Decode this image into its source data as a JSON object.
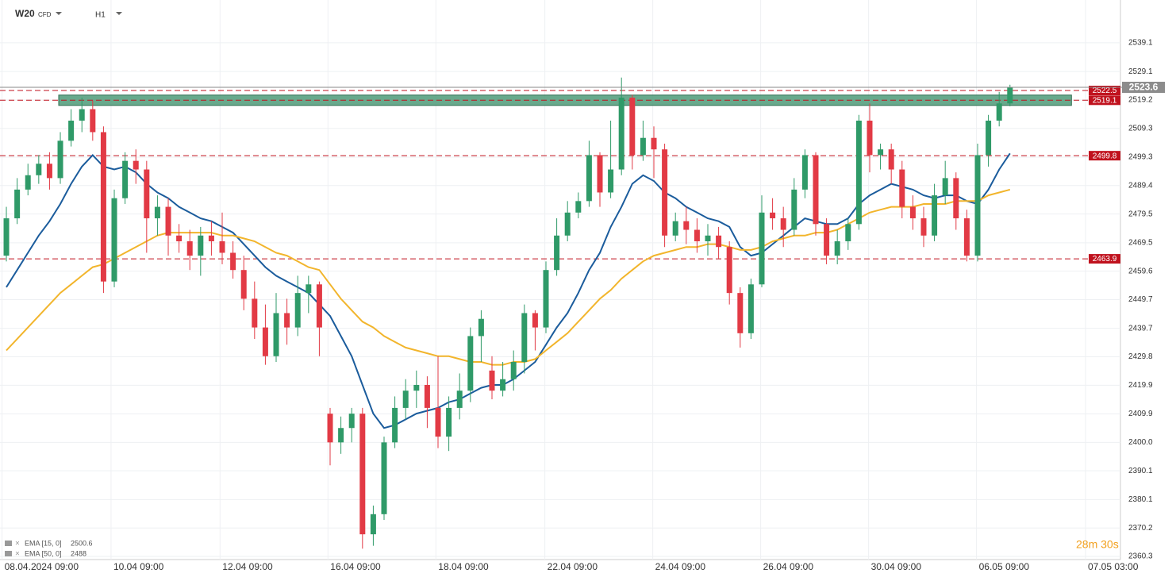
{
  "header": {
    "symbol": "W20",
    "instrument": "CFD",
    "interval": "H1"
  },
  "chart_data": {
    "type": "candlestick",
    "xlim": [
      -0.59,
      103.09
    ],
    "ylim": [
      2359.2,
      2554.0
    ],
    "xticks": [
      {
        "value": -0.4,
        "label": "08.04.2024 09:00"
      },
      {
        "value": 9.7,
        "label": "10.04 09:00"
      },
      {
        "value": 19.8,
        "label": "12.04 09:00"
      },
      {
        "value": 29.8,
        "label": "16.04 09:00"
      },
      {
        "value": 39.8,
        "label": "18.04 09:00"
      },
      {
        "value": 49.9,
        "label": "22.04 09:00"
      },
      {
        "value": 59.9,
        "label": "24.04 09:00"
      },
      {
        "value": 69.9,
        "label": "26.04 09:00"
      },
      {
        "value": 79.9,
        "label": "30.04 09:00"
      },
      {
        "value": 89.9,
        "label": "06.05 09:00"
      },
      {
        "value": 100.0,
        "label": "07.05 03:00"
      }
    ],
    "yticks": [
      2539.1,
      2529.1,
      2519.2,
      2509.3,
      2499.3,
      2489.4,
      2479.5,
      2469.5,
      2459.6,
      2449.7,
      2439.7,
      2429.8,
      2419.9,
      2409.9,
      {
        "value": 2400,
        "label": "2400.0"
      },
      2390.1,
      2380.1,
      2370.2,
      2360.3
    ],
    "grid": true,
    "up_color": "#2f9a68",
    "down_color": "#e23a45",
    "ohlc": [
      [
        2465,
        2482,
        2463,
        2478
      ],
      [
        2478,
        2492,
        2476,
        2488
      ],
      [
        2488,
        2497,
        2486,
        2493
      ],
      [
        2493,
        2500,
        2490,
        2497
      ],
      [
        2497,
        2501,
        2488,
        2492
      ],
      [
        2492,
        2508,
        2490,
        2505
      ],
      [
        2505,
        2516,
        2503,
        2512
      ],
      [
        2512,
        2520,
        2508,
        2516
      ],
      [
        2516,
        2519,
        2505,
        2508
      ],
      [
        2508,
        2510,
        2452,
        2456
      ],
      [
        2456,
        2488,
        2454,
        2485
      ],
      [
        2485,
        2501,
        2483,
        2498
      ],
      [
        2498,
        2502,
        2490,
        2495
      ],
      [
        2495,
        2498,
        2466,
        2478
      ],
      [
        2478,
        2486,
        2472,
        2482
      ],
      [
        2482,
        2485,
        2465,
        2472
      ],
      [
        2472,
        2476,
        2466,
        2470
      ],
      [
        2470,
        2474,
        2460,
        2465
      ],
      [
        2465,
        2475,
        2458,
        2472
      ],
      [
        2472,
        2477,
        2465,
        2470
      ],
      [
        2470,
        2480,
        2462,
        2466
      ],
      [
        2466,
        2470,
        2457,
        2460
      ],
      [
        2460,
        2465,
        2446,
        2450
      ],
      [
        2450,
        2456,
        2436,
        2440
      ],
      [
        2440,
        2448,
        2427,
        2430
      ],
      [
        2430,
        2452,
        2428,
        2445
      ],
      [
        2445,
        2450,
        2434,
        2440
      ],
      [
        2440,
        2458,
        2437,
        2452
      ],
      [
        2452,
        2458,
        2445,
        2455
      ],
      [
        2455,
        2456,
        2430,
        2440
      ],
      [
        2410,
        2412,
        2392,
        2400
      ],
      [
        2400,
        2409,
        2396,
        2405
      ],
      [
        2405,
        2412,
        2400,
        2410
      ],
      [
        2410,
        2412,
        2363,
        2368
      ],
      [
        2368,
        2378,
        2364,
        2375
      ],
      [
        2375,
        2402,
        2373,
        2400
      ],
      [
        2400,
        2416,
        2398,
        2412
      ],
      [
        2412,
        2422,
        2408,
        2418
      ],
      [
        2418,
        2425,
        2412,
        2420
      ],
      [
        2420,
        2423,
        2405,
        2412
      ],
      [
        2412,
        2430,
        2398,
        2402
      ],
      [
        2402,
        2416,
        2397,
        2412
      ],
      [
        2412,
        2424,
        2408,
        2418
      ],
      [
        2418,
        2440,
        2414,
        2437
      ],
      [
        2437,
        2446,
        2428,
        2443
      ],
      [
        2425,
        2430,
        2415,
        2418
      ],
      [
        2418,
        2428,
        2416,
        2422
      ],
      [
        2422,
        2432,
        2418,
        2428
      ],
      [
        2428,
        2448,
        2424,
        2445
      ],
      [
        2445,
        2446,
        2432,
        2440
      ],
      [
        2440,
        2463,
        2438,
        2460
      ],
      [
        2460,
        2478,
        2458,
        2472
      ],
      [
        2472,
        2484,
        2470,
        2480
      ],
      [
        2480,
        2487,
        2478,
        2484
      ],
      [
        2484,
        2505,
        2482,
        2500
      ],
      [
        2500,
        2501,
        2482,
        2487
      ],
      [
        2487,
        2512,
        2485,
        2495
      ],
      [
        2495,
        2527,
        2493,
        2520
      ],
      [
        2520,
        2521,
        2495,
        2500
      ],
      [
        2500,
        2512,
        2498,
        2506
      ],
      [
        2506,
        2510,
        2492,
        2502
      ],
      [
        2502,
        2504,
        2468,
        2472
      ],
      [
        2472,
        2480,
        2470,
        2477
      ],
      [
        2477,
        2482,
        2469,
        2474
      ],
      [
        2474,
        2478,
        2466,
        2470
      ],
      [
        2470,
        2476,
        2465,
        2472
      ],
      [
        2472,
        2475,
        2464,
        2468
      ],
      [
        2468,
        2470,
        2448,
        2452
      ],
      [
        2452,
        2454,
        2433,
        2438
      ],
      [
        2438,
        2457,
        2436,
        2455
      ],
      [
        2455,
        2486,
        2454,
        2480
      ],
      [
        2480,
        2485,
        2474,
        2478
      ],
      [
        2478,
        2482,
        2468,
        2474
      ],
      [
        2474,
        2492,
        2472,
        2488
      ],
      [
        2488,
        2502,
        2485,
        2500
      ],
      [
        2500,
        2501,
        2472,
        2476
      ],
      [
        2476,
        2478,
        2462,
        2465
      ],
      [
        2465,
        2474,
        2462,
        2470
      ],
      [
        2470,
        2478,
        2467,
        2476
      ],
      [
        2476,
        2514,
        2474,
        2512
      ],
      [
        2512,
        2518,
        2494,
        2500
      ],
      [
        2500,
        2504,
        2495,
        2502
      ],
      [
        2502,
        2504,
        2490,
        2495
      ],
      [
        2495,
        2498,
        2478,
        2482
      ],
      [
        2482,
        2486,
        2474,
        2478
      ],
      [
        2478,
        2482,
        2468,
        2472
      ],
      [
        2472,
        2490,
        2470,
        2486
      ],
      [
        2486,
        2498,
        2483,
        2492
      ],
      [
        2492,
        2494,
        2474,
        2478
      ],
      [
        2478,
        2481,
        2463,
        2465
      ],
      [
        2465,
        2504,
        2463,
        2500
      ],
      [
        2500,
        2514,
        2496,
        2512
      ],
      [
        2512,
        2522,
        2510,
        2518
      ],
      [
        2518,
        2524.5,
        2517,
        2523.6
      ]
    ],
    "indicators": [
      {
        "name": "EMA [15, 0]",
        "color": "#1b5c9c",
        "values": [
          2454,
          2460,
          2466,
          2472,
          2477,
          2483,
          2490,
          2496,
          2500,
          2496,
          2495,
          2496,
          2494,
          2490,
          2487,
          2485,
          2482,
          2480,
          2478,
          2477,
          2475,
          2473,
          2469,
          2465,
          2461,
          2458,
          2456,
          2454,
          2452,
          2448,
          2444,
          2437,
          2430,
          2420,
          2410,
          2405,
          2406,
          2408,
          2410,
          2411,
          2412,
          2414,
          2415,
          2417,
          2419,
          2420,
          2420,
          2422,
          2425,
          2428,
          2434,
          2440,
          2445,
          2452,
          2460,
          2466,
          2475,
          2482,
          2490,
          2493,
          2491,
          2487,
          2485,
          2482,
          2480,
          2478,
          2477,
          2475,
          2468,
          2465,
          2466,
          2469,
          2472,
          2475,
          2478,
          2477,
          2476,
          2476,
          2478,
          2483,
          2486,
          2488,
          2490,
          2489,
          2488,
          2486,
          2485,
          2486,
          2486,
          2484,
          2483,
          2488,
          2495,
          2500.6
        ]
      },
      {
        "name": "EMA [50, 0]",
        "color": "#f2b52c",
        "values": [
          2432,
          2436,
          2440,
          2444,
          2448,
          2452,
          2455,
          2458,
          2461,
          2462,
          2464,
          2466,
          2468,
          2470,
          2472,
          2473,
          2473,
          2473,
          2473,
          2473,
          2472,
          2472,
          2471,
          2470,
          2468,
          2466,
          2465,
          2463,
          2461,
          2460,
          2455,
          2450,
          2446,
          2442,
          2440,
          2437,
          2435,
          2433,
          2432,
          2431,
          2430,
          2430,
          2429,
          2428,
          2428,
          2427,
          2427,
          2428,
          2428,
          2429,
          2432,
          2435,
          2438,
          2442,
          2446,
          2450,
          2453,
          2457,
          2460,
          2463,
          2465,
          2466,
          2467,
          2468,
          2468,
          2469,
          2469,
          2468,
          2467,
          2467,
          2468,
          2470,
          2471,
          2472,
          2472,
          2473,
          2473,
          2474,
          2476,
          2478,
          2480,
          2481,
          2482,
          2482,
          2482,
          2483,
          2483,
          2483,
          2484,
          2484,
          2484,
          2486,
          2487,
          2488.0
        ]
      }
    ],
    "levels": [
      2522.5,
      2519.1,
      2499.8,
      2463.9
    ],
    "level_color": "#c0121e",
    "zone": {
      "from": 4.85,
      "to": 98.7,
      "low": 2517.3,
      "high": 2520.9,
      "color": "#4e9a78"
    },
    "countdown": "28m 30s"
  }
}
